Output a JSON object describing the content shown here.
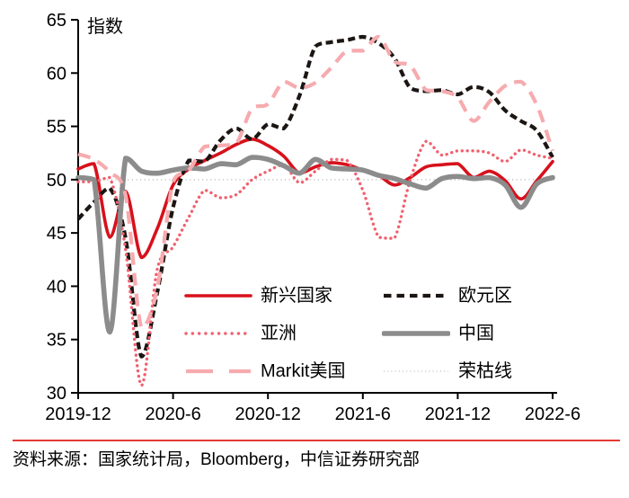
{
  "chart_data": {
    "type": "line",
    "title": "",
    "ylabel": "指数",
    "ylim": [
      30,
      65
    ],
    "yticks": [
      30,
      35,
      40,
      45,
      50,
      55,
      60,
      65
    ],
    "x_start": "2019-12",
    "x_interval_months": 1,
    "n_points": 31,
    "x_ticks": [
      {
        "label": "2019-12",
        "index": 0
      },
      {
        "label": "2020-6",
        "index": 6
      },
      {
        "label": "2020-12",
        "index": 12
      },
      {
        "label": "2021-6",
        "index": 18
      },
      {
        "label": "2021-12",
        "index": 24
      },
      {
        "label": "2022-6",
        "index": 30
      }
    ],
    "grid": false,
    "legend_position": "inside-bottom-center",
    "reference_line": {
      "key": "boom-bust",
      "label": "荣枯线",
      "value": 50,
      "color": "#C8C8C8",
      "line_style": "fine-dot"
    },
    "series": [
      {
        "key": "emerging",
        "name": "新兴国家",
        "color": "#D7111C",
        "line_style": "solid",
        "values": [
          51.0,
          51.5,
          44.6,
          48.9,
          42.7,
          45.4,
          49.5,
          51.0,
          51.8,
          52.5,
          53.3,
          53.8,
          53.2,
          52.2,
          50.6,
          51.2,
          51.6,
          51.4,
          50.9,
          50.4,
          49.5,
          50.2,
          51.2,
          51.4,
          51.5,
          50.2,
          50.8,
          49.9,
          48.2,
          49.9,
          51.7
        ]
      },
      {
        "key": "eurozone",
        "name": "欧元区",
        "color": "#1B1613",
        "line_style": "dashed",
        "values": [
          46.3,
          47.9,
          49.2,
          44.5,
          33.4,
          39.4,
          47.4,
          51.8,
          51.7,
          53.7,
          54.8,
          53.8,
          55.2,
          54.8,
          57.9,
          62.5,
          62.9,
          63.1,
          63.4,
          62.8,
          61.4,
          58.6,
          58.3,
          58.4,
          58.0,
          58.7,
          58.2,
          56.5,
          55.5,
          54.6,
          52.1
        ]
      },
      {
        "key": "asia",
        "name": "亚洲",
        "color": "#F0616F",
        "line_style": "dotted",
        "values": [
          49.8,
          49.8,
          50.2,
          43.4,
          30.7,
          41.6,
          43.7,
          46.5,
          49.0,
          48.3,
          48.6,
          50.0,
          50.8,
          51.4,
          49.7,
          50.8,
          51.9,
          51.8,
          49.0,
          44.6,
          44.5,
          50.0,
          53.6,
          52.3,
          52.7,
          52.7,
          52.5,
          51.7,
          52.8,
          52.3,
          52.0
        ]
      },
      {
        "key": "china",
        "name": "中国",
        "color": "#8C8C8C",
        "line_style": "solid-thick",
        "values": [
          50.2,
          50.0,
          35.7,
          52.0,
          50.8,
          50.6,
          50.9,
          51.1,
          51.0,
          51.5,
          51.4,
          52.1,
          51.9,
          51.3,
          50.6,
          51.9,
          51.1,
          51.0,
          50.9,
          50.4,
          50.1,
          49.6,
          49.2,
          50.1,
          50.3,
          50.1,
          50.2,
          49.5,
          47.4,
          49.6,
          50.2
        ]
      },
      {
        "key": "markit-us",
        "name": "Markit美国",
        "color": "#F6ABAF",
        "line_style": "long-dash",
        "values": [
          52.4,
          51.9,
          50.7,
          48.5,
          36.1,
          39.8,
          49.8,
          50.9,
          53.1,
          53.2,
          53.4,
          56.7,
          57.1,
          59.2,
          58.6,
          59.1,
          60.5,
          62.1,
          62.1,
          63.4,
          61.1,
          60.7,
          58.4,
          58.3,
          57.7,
          55.5,
          57.3,
          58.8,
          59.2,
          57.0,
          52.7
        ]
      }
    ]
  },
  "source": {
    "text": "资料来源：国家统计局，Bloomberg，中信证券研究部",
    "divider_color": "#E23B35"
  }
}
